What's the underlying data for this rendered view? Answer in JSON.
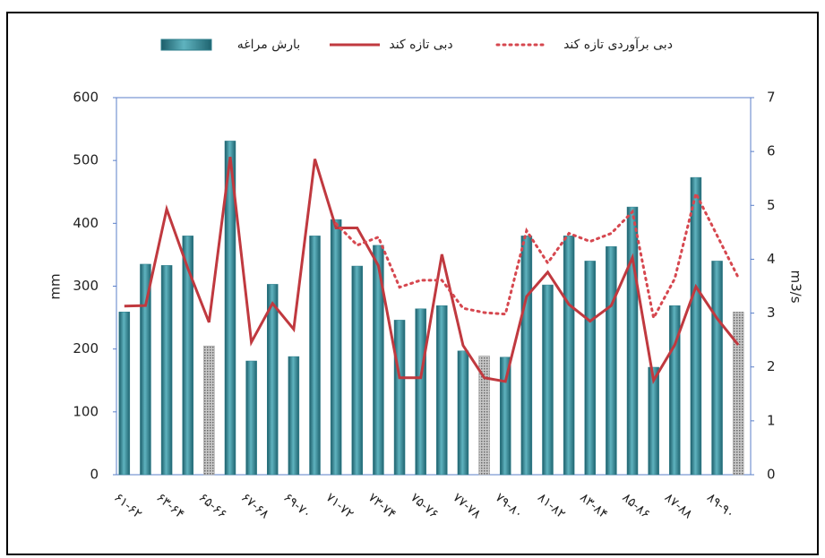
{
  "chart_data": {
    "type": "bar_line",
    "y_label": "mm",
    "y2_label": "m3/s",
    "categories": [
      "۶۱-۶۲",
      null,
      "۶۳-۶۴",
      null,
      "۶۵-۶۶",
      null,
      "۶۷-۶۸",
      null,
      "۶۹-۷۰",
      null,
      "۷۱-۷۲",
      null,
      "۷۳-۷۴",
      null,
      "۷۵-۷۶",
      null,
      "۷۷-۷۸",
      null,
      "۷۹-۸۰",
      null,
      "۸۱-۸۲",
      null,
      "۸۳-۸۴",
      null,
      "۸۵-۸۶",
      null,
      "۸۷-۸۸",
      null,
      "۸۹-۹۰",
      null
    ],
    "series": [
      {
        "name": "بارش مراغه",
        "kind": "bar",
        "color": "#2f7f8c",
        "highlight_color": "#9a9a9a",
        "highlight_indices": [
          4,
          17,
          29
        ],
        "values": [
          259,
          335,
          333,
          380,
          205,
          531,
          181,
          303,
          188,
          380,
          406,
          332,
          365,
          246,
          264,
          269,
          197,
          189,
          187,
          380,
          302,
          380,
          340,
          363,
          426,
          171,
          269,
          473,
          340,
          259
        ]
      },
      {
        "name": "دبی تازه کند",
        "kind": "line",
        "axis": "y2",
        "color": "#c0393f",
        "dash": "solid",
        "values": [
          3.13,
          3.14,
          4.93,
          3.83,
          2.83,
          5.9,
          2.46,
          3.18,
          2.7,
          5.86,
          4.58,
          4.58,
          3.88,
          1.8,
          1.8,
          4.09,
          2.4,
          1.8,
          1.73,
          3.31,
          3.76,
          3.16,
          2.85,
          3.14,
          4.03,
          1.75,
          2.41,
          3.49,
          2.9,
          2.41
        ]
      },
      {
        "name": "دبی برآوردی تازه کند",
        "kind": "line",
        "axis": "y2",
        "color": "#d6474f",
        "dash": "dotted",
        "values": [
          null,
          null,
          null,
          null,
          null,
          null,
          null,
          null,
          null,
          null,
          4.66,
          4.26,
          4.41,
          3.48,
          3.61,
          3.61,
          3.09,
          3.01,
          2.98,
          4.53,
          3.93,
          4.48,
          4.33,
          4.48,
          4.88,
          2.91,
          3.64,
          5.22,
          4.44,
          3.66
        ]
      }
    ],
    "ylim": [
      0,
      600
    ],
    "yticks": [
      0,
      100,
      200,
      300,
      400,
      500,
      600
    ],
    "y2lim": [
      0,
      7
    ],
    "y2ticks": [
      0,
      1,
      2,
      3,
      4,
      5,
      6,
      7
    ]
  }
}
